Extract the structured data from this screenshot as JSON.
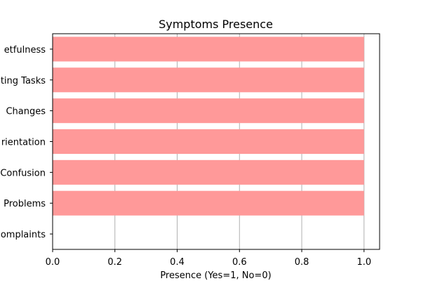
{
  "chart_data": {
    "type": "bar",
    "orientation": "horizontal",
    "title": "Symptoms Presence",
    "xlabel": "Presence (Yes=1, No=0)",
    "ylabel": "",
    "xlim": [
      0,
      1.05
    ],
    "xticks": [
      "0.0",
      "0.2",
      "0.4",
      "0.6",
      "0.8",
      "1.0"
    ],
    "xtick_values": [
      0,
      0.2,
      0.4,
      0.6,
      0.8,
      1.0
    ],
    "grid": "vertical",
    "categories": [
      "etfulness",
      "ting Tasks",
      "Changes",
      "rientation",
      "Confusion",
      "Problems",
      "omplaints"
    ],
    "values": [
      1,
      1,
      1,
      1,
      1,
      1,
      0
    ],
    "bar_color": "#ff9999"
  }
}
